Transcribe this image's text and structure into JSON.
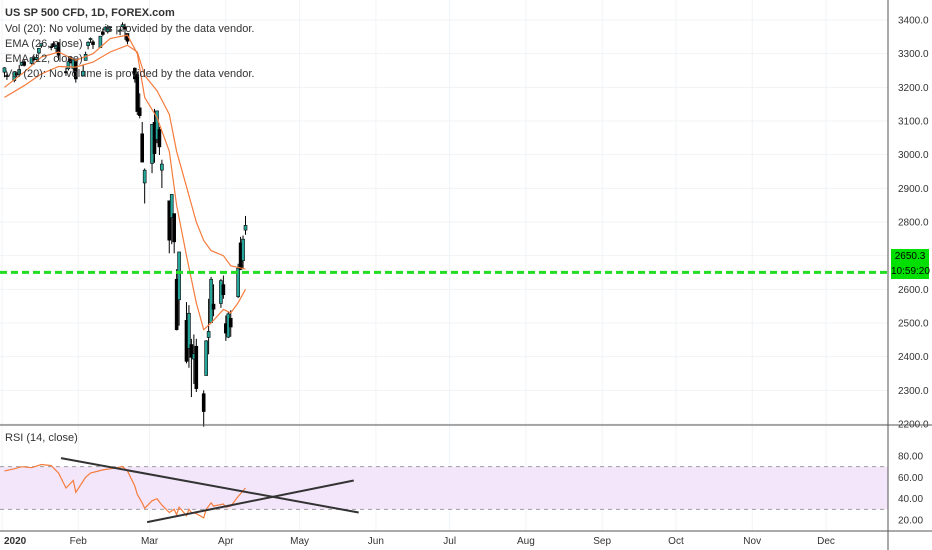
{
  "header": {
    "title": "US SP 500 CFD, 1D, FOREX.com",
    "indicators": [
      "Vol (20): No volume is provided by the data vendor.",
      "EMA (26, close)",
      "EMA (12, close)",
      "Vol (20): No volume is provided by the data vendor."
    ]
  },
  "rsi_legend": "RSI (14, close)",
  "price_tag": {
    "value": "2650.3",
    "countdown": "10:59:20"
  },
  "colors": {
    "up": "#26a69a",
    "down": "#ef5350",
    "candle": "#000000",
    "ema_fast": "#f57c3c",
    "ema_slow": "#f57c3c",
    "level": "#22dd22",
    "rsi_line": "#f57c3c",
    "rsi_band": "#f3e6fb",
    "tag": "#00e000"
  },
  "chart_data": [
    {
      "type": "line",
      "name": "price",
      "ylim": [
        2150,
        3450
      ],
      "yticks": [
        2200,
        2300,
        2400,
        2500,
        2600,
        2700,
        2800,
        2900,
        3000,
        3100,
        3200,
        3300,
        3400
      ],
      "ytick_labels": [
        "2200.0",
        "2300.0",
        "2400.0",
        "2500.0",
        "2600.0",
        "2700.0",
        "2800.0",
        "2900.0",
        "3000.0",
        "3100.0",
        "3200.0",
        "3300.0",
        "3400.0"
      ],
      "xlabels": [
        "2020",
        "Feb",
        "Mar",
        "Apr",
        "May",
        "Jun",
        "Jul",
        "Aug",
        "Sep",
        "Oct",
        "Nov",
        "Dec"
      ],
      "xlim": [
        "2020-01-01",
        "2021-01-15"
      ],
      "x_ticks": [
        "2020-01-01",
        "2020-02-01",
        "2020-03-01",
        "2020-04-01",
        "2020-05-01",
        "2020-06-01",
        "2020-07-01",
        "2020-08-01",
        "2020-09-01",
        "2020-10-01",
        "2020-11-01",
        "2020-12-01"
      ],
      "level": 2650.3,
      "candles": [
        [
          "2020-01-02",
          3245,
          3260,
          3230,
          3258
        ],
        [
          "2020-01-03",
          3235,
          3246,
          3222,
          3234
        ],
        [
          "2020-01-06",
          3220,
          3247,
          3215,
          3246
        ],
        [
          "2020-01-07",
          3241,
          3245,
          3230,
          3237
        ],
        [
          "2020-01-08",
          3238,
          3266,
          3235,
          3253
        ],
        [
          "2020-01-09",
          3266,
          3275,
          3263,
          3274
        ],
        [
          "2020-01-10",
          3276,
          3282,
          3262,
          3265
        ],
        [
          "2020-01-13",
          3271,
          3288,
          3268,
          3288
        ],
        [
          "2020-01-14",
          3285,
          3294,
          3277,
          3283
        ],
        [
          "2020-01-15",
          3283,
          3298,
          3280,
          3289
        ],
        [
          "2020-01-16",
          3302,
          3316,
          3298,
          3316
        ],
        [
          "2020-01-17",
          3323,
          3330,
          3317,
          3330
        ],
        [
          "2020-01-21",
          3321,
          3330,
          3310,
          3320
        ],
        [
          "2020-01-22",
          3330,
          3337,
          3320,
          3321
        ],
        [
          "2020-01-23",
          3315,
          3326,
          3301,
          3325
        ],
        [
          "2020-01-24",
          3333,
          3334,
          3280,
          3295
        ],
        [
          "2020-01-27",
          3247,
          3258,
          3234,
          3243
        ],
        [
          "2020-01-28",
          3255,
          3285,
          3250,
          3276
        ],
        [
          "2020-01-29",
          3289,
          3293,
          3271,
          3273
        ],
        [
          "2020-01-30",
          3256,
          3285,
          3242,
          3284
        ],
        [
          "2020-01-31",
          3282,
          3282,
          3214,
          3225
        ],
        [
          "2020-02-03",
          3235,
          3268,
          3235,
          3248
        ],
        [
          "2020-02-04",
          3280,
          3306,
          3280,
          3298
        ],
        [
          "2020-02-05",
          3324,
          3337,
          3313,
          3334
        ],
        [
          "2020-02-06",
          3344,
          3348,
          3332,
          3345
        ],
        [
          "2020-02-07",
          3335,
          3341,
          3314,
          3327
        ],
        [
          "2020-02-10",
          3318,
          3352,
          3317,
          3352
        ],
        [
          "2020-02-11",
          3365,
          3375,
          3352,
          3357
        ],
        [
          "2020-02-12",
          3370,
          3381,
          3369,
          3379
        ],
        [
          "2020-02-13",
          3365,
          3385,
          3360,
          3373
        ],
        [
          "2020-02-14",
          3378,
          3380,
          3367,
          3380
        ],
        [
          "2020-02-18",
          3370,
          3375,
          3355,
          3370
        ],
        [
          "2020-02-19",
          3380,
          3393,
          3378,
          3386
        ],
        [
          "2020-02-20",
          3380,
          3389,
          3341,
          3373
        ],
        [
          "2020-02-21",
          3360,
          3360,
          3328,
          3337
        ],
        [
          "2020-02-24",
          3257,
          3259,
          3214,
          3225
        ],
        [
          "2020-02-25",
          3238,
          3246,
          3118,
          3128
        ],
        [
          "2020-02-26",
          3139,
          3182,
          3108,
          3116
        ],
        [
          "2020-02-27",
          3062,
          3097,
          2977,
          2978
        ],
        [
          "2020-02-28",
          2916,
          2959,
          2855,
          2954
        ],
        [
          "2020-03-02",
          2974,
          3090,
          2945,
          3090
        ],
        [
          "2020-03-03",
          3096,
          3136,
          2976,
          3003
        ],
        [
          "2020-03-04",
          3045,
          3130,
          3034,
          3130
        ],
        [
          "2020-03-05",
          3075,
          3083,
          2999,
          3023
        ],
        [
          "2020-03-06",
          2954,
          2985,
          2901,
          2972
        ],
        [
          "2020-03-09",
          2863,
          2863,
          2707,
          2746
        ],
        [
          "2020-03-10",
          2813,
          2882,
          2734,
          2882
        ],
        [
          "2020-03-11",
          2825,
          2825,
          2707,
          2741
        ],
        [
          "2020-03-12",
          2630,
          2660,
          2478,
          2480
        ],
        [
          "2020-03-13",
          2569,
          2711,
          2492,
          2711
        ],
        [
          "2020-03-16",
          2508,
          2562,
          2380,
          2386
        ],
        [
          "2020-03-17",
          2425,
          2553,
          2367,
          2529
        ],
        [
          "2020-03-18",
          2436,
          2453,
          2280,
          2398
        ],
        [
          "2020-03-19",
          2393,
          2466,
          2319,
          2409
        ],
        [
          "2020-03-20",
          2431,
          2453,
          2295,
          2305
        ],
        [
          "2020-03-23",
          2290,
          2300,
          2192,
          2237
        ],
        [
          "2020-03-24",
          2344,
          2449,
          2344,
          2447
        ],
        [
          "2020-03-25",
          2457,
          2572,
          2407,
          2475
        ],
        [
          "2020-03-26",
          2501,
          2637,
          2500,
          2630
        ],
        [
          "2020-03-27",
          2556,
          2615,
          2520,
          2541
        ],
        [
          "2020-03-30",
          2558,
          2631,
          2545,
          2626
        ],
        [
          "2020-03-31",
          2614,
          2641,
          2572,
          2584
        ],
        [
          "2020-04-01",
          2498,
          2522,
          2447,
          2470
        ],
        [
          "2020-04-02",
          2458,
          2533,
          2455,
          2527
        ],
        [
          "2020-04-03",
          2514,
          2538,
          2459,
          2488
        ],
        [
          "2020-04-06",
          2578,
          2676,
          2574,
          2663
        ],
        [
          "2020-04-07",
          2738,
          2756,
          2657,
          2659
        ],
        [
          "2020-04-08",
          2685,
          2760,
          2663,
          2749
        ],
        [
          "2020-04-09",
          2776,
          2818,
          2762,
          2790
        ]
      ],
      "ema12": [
        [
          "2020-01-02",
          3200
        ],
        [
          "2020-01-10",
          3245
        ],
        [
          "2020-01-17",
          3290
        ],
        [
          "2020-01-24",
          3305
        ],
        [
          "2020-01-31",
          3280
        ],
        [
          "2020-02-07",
          3300
        ],
        [
          "2020-02-14",
          3345
        ],
        [
          "2020-02-21",
          3355
        ],
        [
          "2020-02-25",
          3300
        ],
        [
          "2020-02-28",
          3170
        ],
        [
          "2020-03-04",
          3110
        ],
        [
          "2020-03-09",
          3010
        ],
        [
          "2020-03-12",
          2850
        ],
        [
          "2020-03-16",
          2700
        ],
        [
          "2020-03-20",
          2560
        ],
        [
          "2020-03-23",
          2480
        ],
        [
          "2020-03-26",
          2500
        ],
        [
          "2020-03-31",
          2540
        ],
        [
          "2020-04-03",
          2530
        ],
        [
          "2020-04-06",
          2560
        ],
        [
          "2020-04-09",
          2600
        ]
      ],
      "ema26": [
        [
          "2020-01-02",
          3170
        ],
        [
          "2020-01-10",
          3205
        ],
        [
          "2020-01-17",
          3240
        ],
        [
          "2020-01-24",
          3262
        ],
        [
          "2020-01-31",
          3260
        ],
        [
          "2020-02-07",
          3275
        ],
        [
          "2020-02-14",
          3305
        ],
        [
          "2020-02-21",
          3325
        ],
        [
          "2020-02-25",
          3305
        ],
        [
          "2020-02-28",
          3235
        ],
        [
          "2020-03-04",
          3190
        ],
        [
          "2020-03-09",
          3120
        ],
        [
          "2020-03-12",
          3010
        ],
        [
          "2020-03-16",
          2905
        ],
        [
          "2020-03-20",
          2800
        ],
        [
          "2020-03-23",
          2745
        ],
        [
          "2020-03-26",
          2715
        ],
        [
          "2020-03-31",
          2700
        ],
        [
          "2020-04-03",
          2670
        ],
        [
          "2020-04-06",
          2665
        ],
        [
          "2020-04-09",
          2660
        ]
      ]
    },
    {
      "type": "line",
      "name": "RSI (14, close)",
      "ylim": [
        15,
        85
      ],
      "yticks": [
        20,
        40,
        60,
        80
      ],
      "ytick_labels": [
        "20.00",
        "40.00",
        "60.00",
        "80.00"
      ],
      "band": [
        30,
        70
      ],
      "x": [
        "2020-01-02",
        "2020-01-06",
        "2020-01-09",
        "2020-01-13",
        "2020-01-17",
        "2020-01-21",
        "2020-01-24",
        "2020-01-27",
        "2020-01-30",
        "2020-01-31",
        "2020-02-04",
        "2020-02-06",
        "2020-02-11",
        "2020-02-14",
        "2020-02-19",
        "2020-02-21",
        "2020-02-24",
        "2020-02-25",
        "2020-02-27",
        "2020-02-28",
        "2020-03-02",
        "2020-03-04",
        "2020-03-06",
        "2020-03-09",
        "2020-03-11",
        "2020-03-12",
        "2020-03-13",
        "2020-03-16",
        "2020-03-17",
        "2020-03-18",
        "2020-03-20",
        "2020-03-23",
        "2020-03-24",
        "2020-03-26",
        "2020-03-27",
        "2020-03-31",
        "2020-04-01",
        "2020-04-03",
        "2020-04-06",
        "2020-04-09"
      ],
      "y": [
        66,
        68,
        70,
        69,
        72,
        71,
        64,
        50,
        57,
        46,
        60,
        64,
        67,
        68,
        70,
        66,
        52,
        44,
        36,
        31,
        38,
        40,
        34,
        27,
        30,
        25,
        32,
        24,
        30,
        27,
        26,
        22,
        30,
        36,
        33,
        35,
        32,
        33,
        42,
        50
      ],
      "trendlines": [
        {
          "from": [
            "2020-01-25",
            78
          ],
          "to": [
            "2020-05-25",
            27
          ]
        },
        {
          "from": [
            "2020-02-29",
            18
          ],
          "to": [
            "2020-05-23",
            57
          ]
        }
      ]
    }
  ]
}
